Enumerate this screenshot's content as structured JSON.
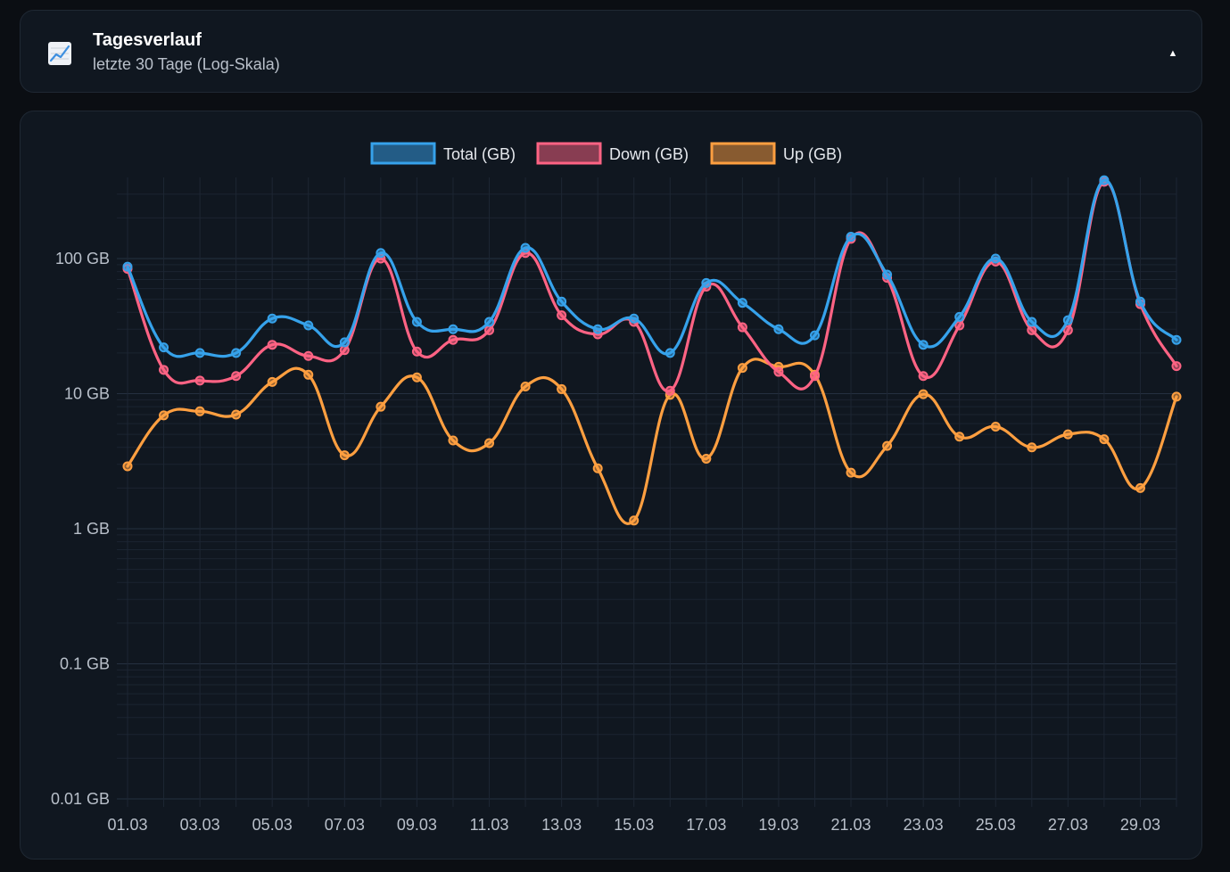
{
  "header": {
    "title": "Tagesverlauf",
    "subtitle": "letzte 30 Tage (Log-Skala)",
    "icon": "chart-line-icon",
    "toggle_icon": "caret-up-icon",
    "toggle_symbol": "▲"
  },
  "chart_data": {
    "type": "line",
    "title": "",
    "xlabel": "",
    "ylabel": "",
    "y_scale": "log",
    "ylim": [
      0.01,
      500
    ],
    "grid": true,
    "legend_position": "top-center",
    "x": [
      "01.03",
      "02.03",
      "03.03",
      "04.03",
      "05.03",
      "06.03",
      "07.03",
      "08.03",
      "09.03",
      "10.03",
      "11.03",
      "12.03",
      "13.03",
      "14.03",
      "15.03",
      "16.03",
      "17.03",
      "18.03",
      "19.03",
      "20.03",
      "21.03",
      "22.03",
      "23.03",
      "24.03",
      "25.03",
      "26.03",
      "27.03",
      "28.03",
      "29.03",
      "30.03"
    ],
    "x_tick_labels": [
      "01.03",
      "03.03",
      "05.03",
      "07.03",
      "09.03",
      "11.03",
      "13.03",
      "15.03",
      "17.03",
      "19.03",
      "21.03",
      "23.03",
      "25.03",
      "27.03",
      "29.03"
    ],
    "y_tick_labels": [
      {
        "value": 100,
        "label": "100 GB"
      },
      {
        "value": 10,
        "label": "10 GB"
      },
      {
        "value": 1,
        "label": "1 GB"
      },
      {
        "value": 0.1,
        "label": "0.1 GB"
      },
      {
        "value": 0.01,
        "label": "0.01 GB"
      }
    ],
    "series": [
      {
        "name": "Total (GB)",
        "color": "#36a2eb",
        "values": [
          87,
          22,
          20,
          20,
          36,
          32,
          24,
          110,
          34,
          30,
          34,
          120,
          48,
          30,
          36,
          20,
          66,
          47,
          30,
          27,
          145,
          76,
          23,
          37,
          100,
          34,
          35,
          380,
          48,
          25
        ]
      },
      {
        "name": "Down (GB)",
        "color": "#ff6384",
        "values": [
          84,
          15,
          12.5,
          13.5,
          23,
          19,
          21,
          100,
          20.5,
          25,
          29.5,
          110,
          38,
          27.5,
          34,
          10.5,
          62,
          31,
          14.5,
          13.5,
          140,
          72,
          13.5,
          32,
          95,
          29.5,
          29.5,
          370,
          46,
          16
        ]
      },
      {
        "name": "Up (GB)",
        "color": "#ff9f40",
        "values": [
          2.9,
          6.9,
          7.4,
          7,
          12.2,
          13.8,
          3.5,
          8,
          13.2,
          4.5,
          4.3,
          11.3,
          10.8,
          2.8,
          1.15,
          9.8,
          3.3,
          15.5,
          15.8,
          13.8,
          2.6,
          4.1,
          9.9,
          4.8,
          5.7,
          4,
          5,
          4.6,
          2,
          9.5
        ]
      }
    ]
  }
}
